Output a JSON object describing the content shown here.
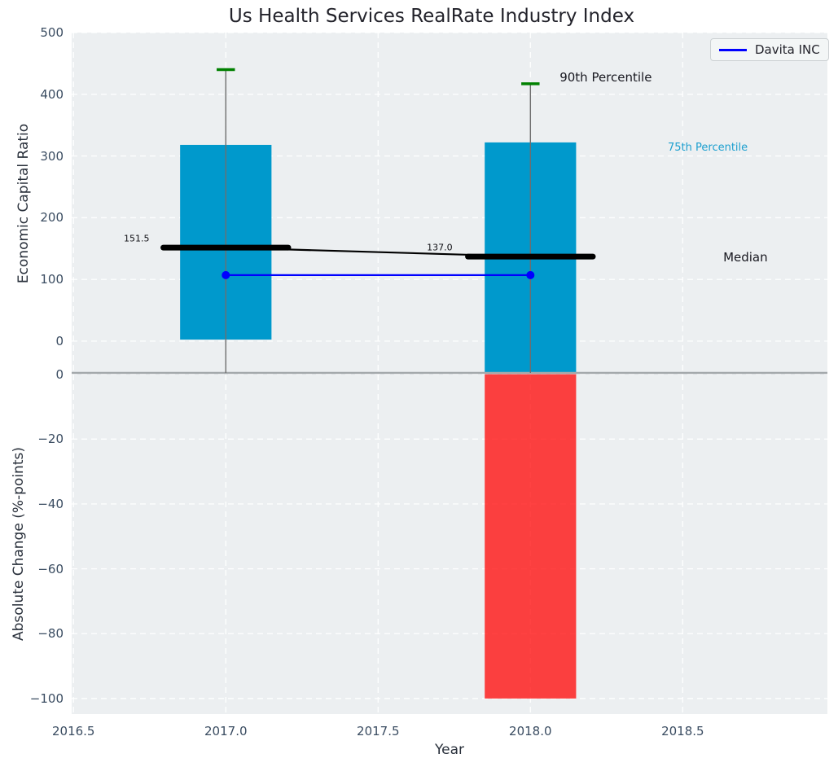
{
  "chart_data": {
    "type": "combo: percentile-box + line + bar",
    "title": "Us Health Services RealRate Industry Index",
    "xlabel": "Year",
    "xlim": [
      2016.494,
      2018.975
    ],
    "xticks": {
      "values": [
        2016.5,
        2017.0,
        2017.5,
        2018.0,
        2018.5
      ],
      "labels": [
        "2016.5",
        "2017.0",
        "2017.5",
        "2018.0",
        "2018.5"
      ]
    },
    "grid": {
      "on": true,
      "color": "#ffffff",
      "style": "dashed",
      "drawn_below_data": true
    },
    "top_panel": {
      "ylabel": "Economic Capital Ratio",
      "ylim": [
        -51.5,
        500
      ],
      "yticks": [
        0,
        100,
        200,
        300,
        400,
        500
      ],
      "box_half_width_years": 0.15,
      "median_half_width_years": 0.205,
      "cap_half_width_years": 0.03,
      "boxes": [
        {
          "year": 2017,
          "p25": 2.5,
          "p75": 318,
          "p90": 440,
          "median": 151.5,
          "p25_clipped": false,
          "whisker_low_clipped": true
        },
        {
          "year": 2018,
          "p25": null,
          "p75": 322,
          "p90": 417,
          "median": 137.0,
          "p25_clipped": true,
          "whisker_low_clipped": true
        }
      ],
      "series": [
        {
          "name": "Davita INC",
          "x": [
            2017,
            2018
          ],
          "y": [
            107,
            107
          ],
          "color": "#0000ff",
          "marker": "circle"
        }
      ]
    },
    "bottom_panel": {
      "ylabel": "Absolute Change (%-points)",
      "ylim": [
        -104.8,
        0.4
      ],
      "yticks": [
        0,
        -20,
        -40,
        -60,
        -80,
        -100
      ],
      "bars": [
        {
          "year": 2018,
          "value": -100
        }
      ]
    },
    "annotations": {
      "p90": {
        "text": "90th Percentile",
        "x": 2018.096,
        "y": 427,
        "size": 15,
        "color": "#17171f"
      },
      "p75": {
        "text": "75th Percentile",
        "x": 2018.451,
        "y": 313,
        "size": 13,
        "color": "#1c9fcf"
      },
      "median": {
        "text": "Median",
        "x": 2018.633,
        "y": 136,
        "size": 15,
        "color": "#17171f"
      },
      "val2017": {
        "text": "151.5",
        "x": 2016.665,
        "y": 166,
        "size": 11,
        "color": "#0d0d12"
      },
      "val2018": {
        "text": "137.0",
        "x": 2017.66,
        "y": 152,
        "size": 11,
        "color": "#0d0d12"
      }
    },
    "legend": {
      "label": "Davita INC",
      "line_color": "#0000ff",
      "location": "upper right"
    },
    "colors": {
      "box": "#0099cc",
      "negative_bar": "#ff0d0d",
      "negative_bar_opacity": 0.78,
      "cap": "#008000",
      "whisker": "#6e6e6e",
      "median_line": "#000000",
      "series_line": "#0000ff",
      "panel_bg": "#eceff1",
      "separator": "#a3a8ab",
      "tick_text": "#3a4c61",
      "title_text": "#23232b"
    }
  }
}
